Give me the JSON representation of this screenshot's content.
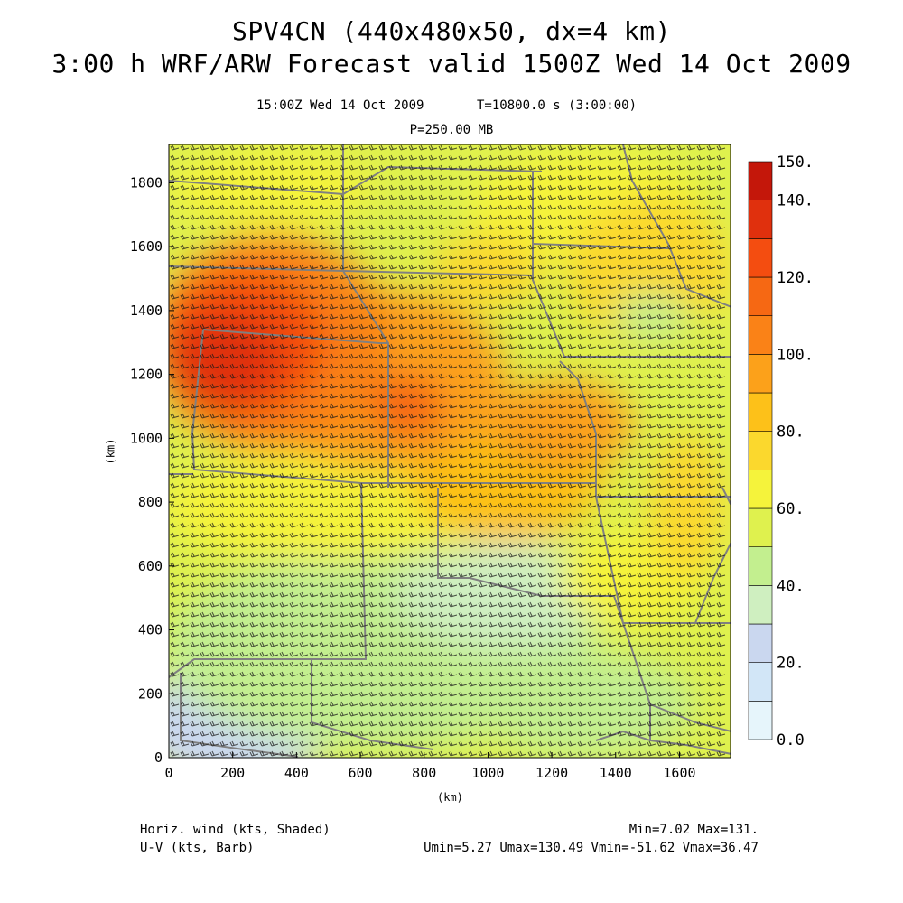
{
  "header": {
    "title_line1": "SPV4CN (440x480x50, dx=4 km)",
    "title_line2": "3:00 h WRF/ARW Forecast valid 1500Z Wed 14 Oct 2009",
    "valid_time": "15:00Z Wed 14 Oct 2009",
    "model_time": "T=10800.0 s (3:00:00)",
    "level": "P=250.00 MB"
  },
  "map": {
    "type": "heatmap",
    "xlabel": "(km)",
    "ylabel": "(km)",
    "xlim": [
      0,
      1760
    ],
    "ylim": [
      0,
      1920
    ],
    "x_ticks": [
      "0",
      "200",
      "400",
      "600",
      "800",
      "1000",
      "1200",
      "1400",
      "1600"
    ],
    "y_ticks": [
      "0",
      "200",
      "400",
      "600",
      "800",
      "1000",
      "1200",
      "1400",
      "1600",
      "1800"
    ],
    "field_units": "kts",
    "field_max_region_km": [
      250,
      1250
    ],
    "field_min_region_km": [
      150,
      50
    ]
  },
  "colorbar": {
    "labels": [
      "0.0",
      "20.",
      "40.",
      "60.",
      "80.",
      "100.",
      "120.",
      "140.",
      "150."
    ],
    "levels": [
      0,
      10,
      20,
      30,
      40,
      50,
      60,
      70,
      80,
      90,
      100,
      110,
      120,
      130,
      140,
      150
    ],
    "colors": [
      "#e6f5fb",
      "#d2e6f7",
      "#cad7ef",
      "#cfefc0",
      "#c3ef8f",
      "#dff14e",
      "#f5f33b",
      "#fbd82d",
      "#fdc119",
      "#fca11a",
      "#fa8217",
      "#f66813",
      "#f44d10",
      "#e0300d",
      "#c4170a"
    ]
  },
  "footer": {
    "shaded_label": "Horiz. wind (kts, Shaded)",
    "barb_label": "U-V (kts, Barb)",
    "minmax": "Min=7.02 Max=131.",
    "uv_stats": "Umin=5.27 Umax=130.49 Vmin=-51.62 Vmax=36.47"
  },
  "colors": {
    "boundary": "#808080",
    "barb": "#1a1a1a"
  }
}
